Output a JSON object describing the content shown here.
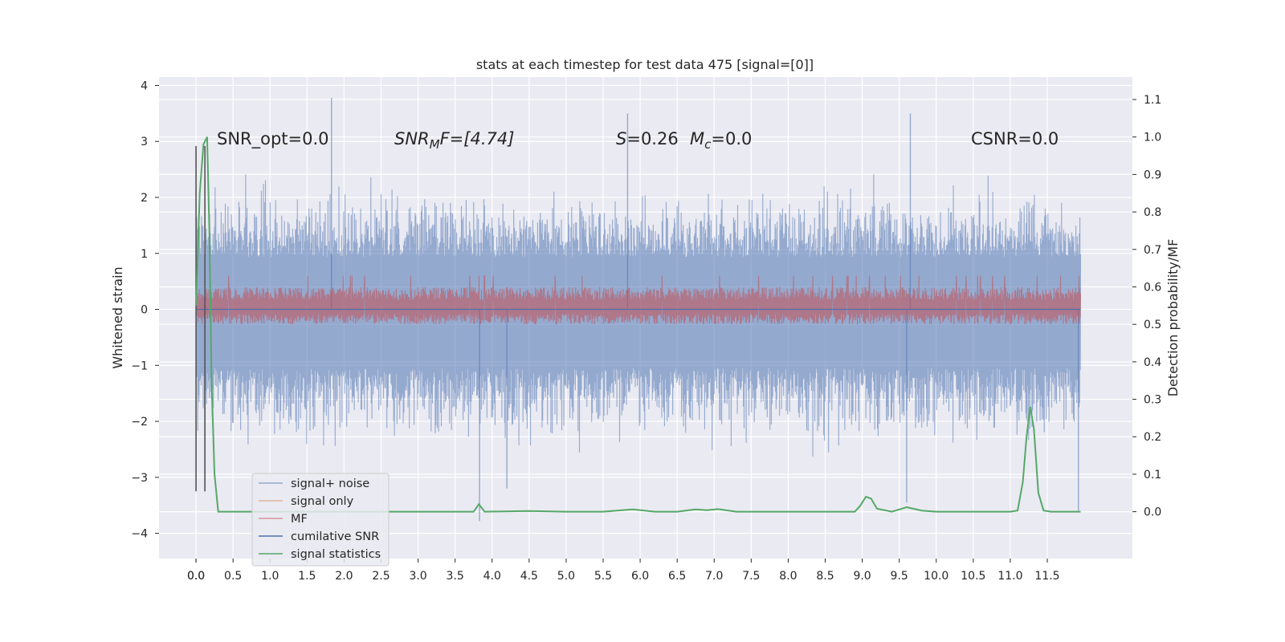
{
  "chart_data": {
    "type": "line",
    "title": "stats at each timestep for test data 475 [signal=[0]]",
    "xlabel": "",
    "ylabel": "Whitened strain",
    "y2label": "Detection probability/MF",
    "xlim": [
      -0.5,
      12.65
    ],
    "ylim": [
      -4.45,
      4.15
    ],
    "y2lim": [
      -0.125,
      1.16
    ],
    "grid": true,
    "legend_position": "lower-left",
    "x_ticks": [
      "0.0",
      "0.0",
      "0.5",
      "1.0",
      "1.5",
      "2.0",
      "2.5",
      "3.0",
      "3.5",
      "4.0",
      "4.5",
      "5.0",
      "5.5",
      "6.0",
      "6.5",
      "7.0",
      "7.5",
      "8.0",
      "8.5",
      "9.0",
      "9.5",
      "10.0",
      "10.5",
      "11.0",
      "11.5"
    ],
    "y_ticks": [
      "4",
      "3",
      "2",
      "1",
      "0",
      "−1",
      "−2",
      "−3",
      "−4"
    ],
    "y2_ticks": [
      "1.1",
      "1.0",
      "0.9",
      "0.8",
      "0.7",
      "0.6",
      "0.5",
      "0.4",
      "0.3",
      "0.2",
      "0.1",
      "0.0"
    ],
    "annotations": {
      "snr_opt": "SNR_opt=0.0",
      "snr_mf_prefix": "SNR",
      "snr_mf_sub": "M",
      "snr_mf_suffix": "F=[4.74]",
      "s_label": "S",
      "s_value": "=0.26",
      "mc_label": "M",
      "mc_sub": "c",
      "mc_value": "=0.0",
      "csnr": "CSNR=0.0"
    },
    "series": [
      {
        "name": "signal+ noise",
        "color": "#4c72b0",
        "axis": "left",
        "style": "dense noise",
        "x_range": [
          0.0,
          11.95
        ],
        "typical_range": [
          -1.9,
          1.7
        ],
        "extremes": [
          {
            "x": 1.83,
            "y": 3.78
          },
          {
            "x": 5.83,
            "y": 3.5
          },
          {
            "x": 9.65,
            "y": 3.5
          },
          {
            "x": 9.6,
            "y": -3.45
          },
          {
            "x": 11.92,
            "y": -3.6
          },
          {
            "x": 3.83,
            "y": -3.78
          },
          {
            "x": 0.12,
            "y": -3.25
          },
          {
            "x": 4.2,
            "y": -3.2
          }
        ]
      },
      {
        "name": "signal only",
        "color": "#dd8452",
        "axis": "left",
        "x": [
          0.0,
          11.95
        ],
        "y": [
          0.0,
          0.0
        ]
      },
      {
        "name": "MF",
        "color": "#c44e52",
        "axis": "right",
        "style": "dense noise",
        "x_range": [
          0.0,
          11.95
        ],
        "typical_range": [
          0.53,
          0.6
        ],
        "max": 0.63
      },
      {
        "name": "cumilative SNR",
        "color": "#4c72b0",
        "axis": "left",
        "x": [
          0.0,
          11.95
        ],
        "y": [
          0.0,
          0.0
        ]
      },
      {
        "name": "signal statistics",
        "color": "#55a868",
        "axis": "right",
        "x": [
          0.0,
          0.05,
          0.1,
          0.15,
          0.18,
          0.21,
          0.25,
          0.3,
          0.5,
          1.0,
          2.0,
          3.0,
          3.75,
          3.82,
          3.9,
          4.5,
          5.0,
          5.5,
          5.9,
          6.2,
          6.5,
          6.75,
          6.9,
          7.05,
          7.3,
          8.0,
          8.9,
          8.97,
          9.05,
          9.12,
          9.2,
          9.4,
          9.6,
          9.8,
          10.0,
          10.5,
          11.0,
          11.1,
          11.17,
          11.22,
          11.27,
          11.32,
          11.38,
          11.45,
          11.55,
          11.95
        ],
        "y": [
          0.55,
          0.85,
          0.98,
          1.0,
          0.75,
          0.35,
          0.1,
          0.0,
          0.0,
          0.0,
          0.0,
          0.0,
          0.0,
          0.02,
          0.0,
          0.002,
          0.0,
          0.0,
          0.006,
          0.0,
          0.0,
          0.006,
          0.004,
          0.007,
          0.0,
          0.0,
          0.0,
          0.015,
          0.04,
          0.035,
          0.008,
          0.0,
          0.012,
          0.003,
          0.0,
          0.0,
          0.0,
          0.003,
          0.08,
          0.2,
          0.28,
          0.22,
          0.05,
          0.003,
          0.0,
          0.0
        ]
      }
    ],
    "vertical_lines": [
      {
        "x": 0.0,
        "ymin": -3.25,
        "ymax": 2.92,
        "color": "#555555"
      },
      {
        "x": 0.12,
        "ymin": -3.25,
        "ymax": 2.92,
        "color": "#555555"
      }
    ],
    "legend": [
      "signal+ noise",
      "signal only",
      "MF",
      "cumilative SNR",
      "signal statistics"
    ]
  }
}
